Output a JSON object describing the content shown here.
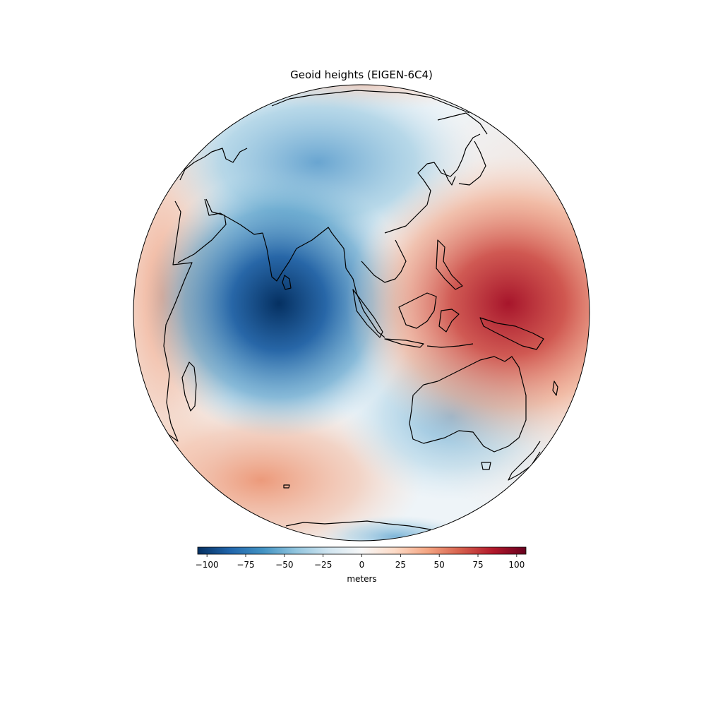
{
  "title": "Geoid heights (EIGEN-6C4)",
  "colorbar": {
    "label": "meters",
    "colormap": "RdBu_r",
    "range": [
      -106,
      106
    ],
    "ticks": [
      -100,
      -75,
      -50,
      -25,
      0,
      25,
      50,
      75,
      100
    ],
    "tick_labels": [
      "−100",
      "−75",
      "−50",
      "−25",
      "0",
      "25",
      "50",
      "75",
      "100"
    ],
    "colors": [
      "#053061",
      "#2166ac",
      "#4393c3",
      "#92c5de",
      "#d1e5f0",
      "#f7f7f7",
      "#fddbc7",
      "#f4a582",
      "#d6604d",
      "#b2182b",
      "#67001f"
    ]
  },
  "map": {
    "projection": "orthographic",
    "center_lon": 90,
    "center_lat": -5,
    "coastline_color": "#000000"
  }
}
